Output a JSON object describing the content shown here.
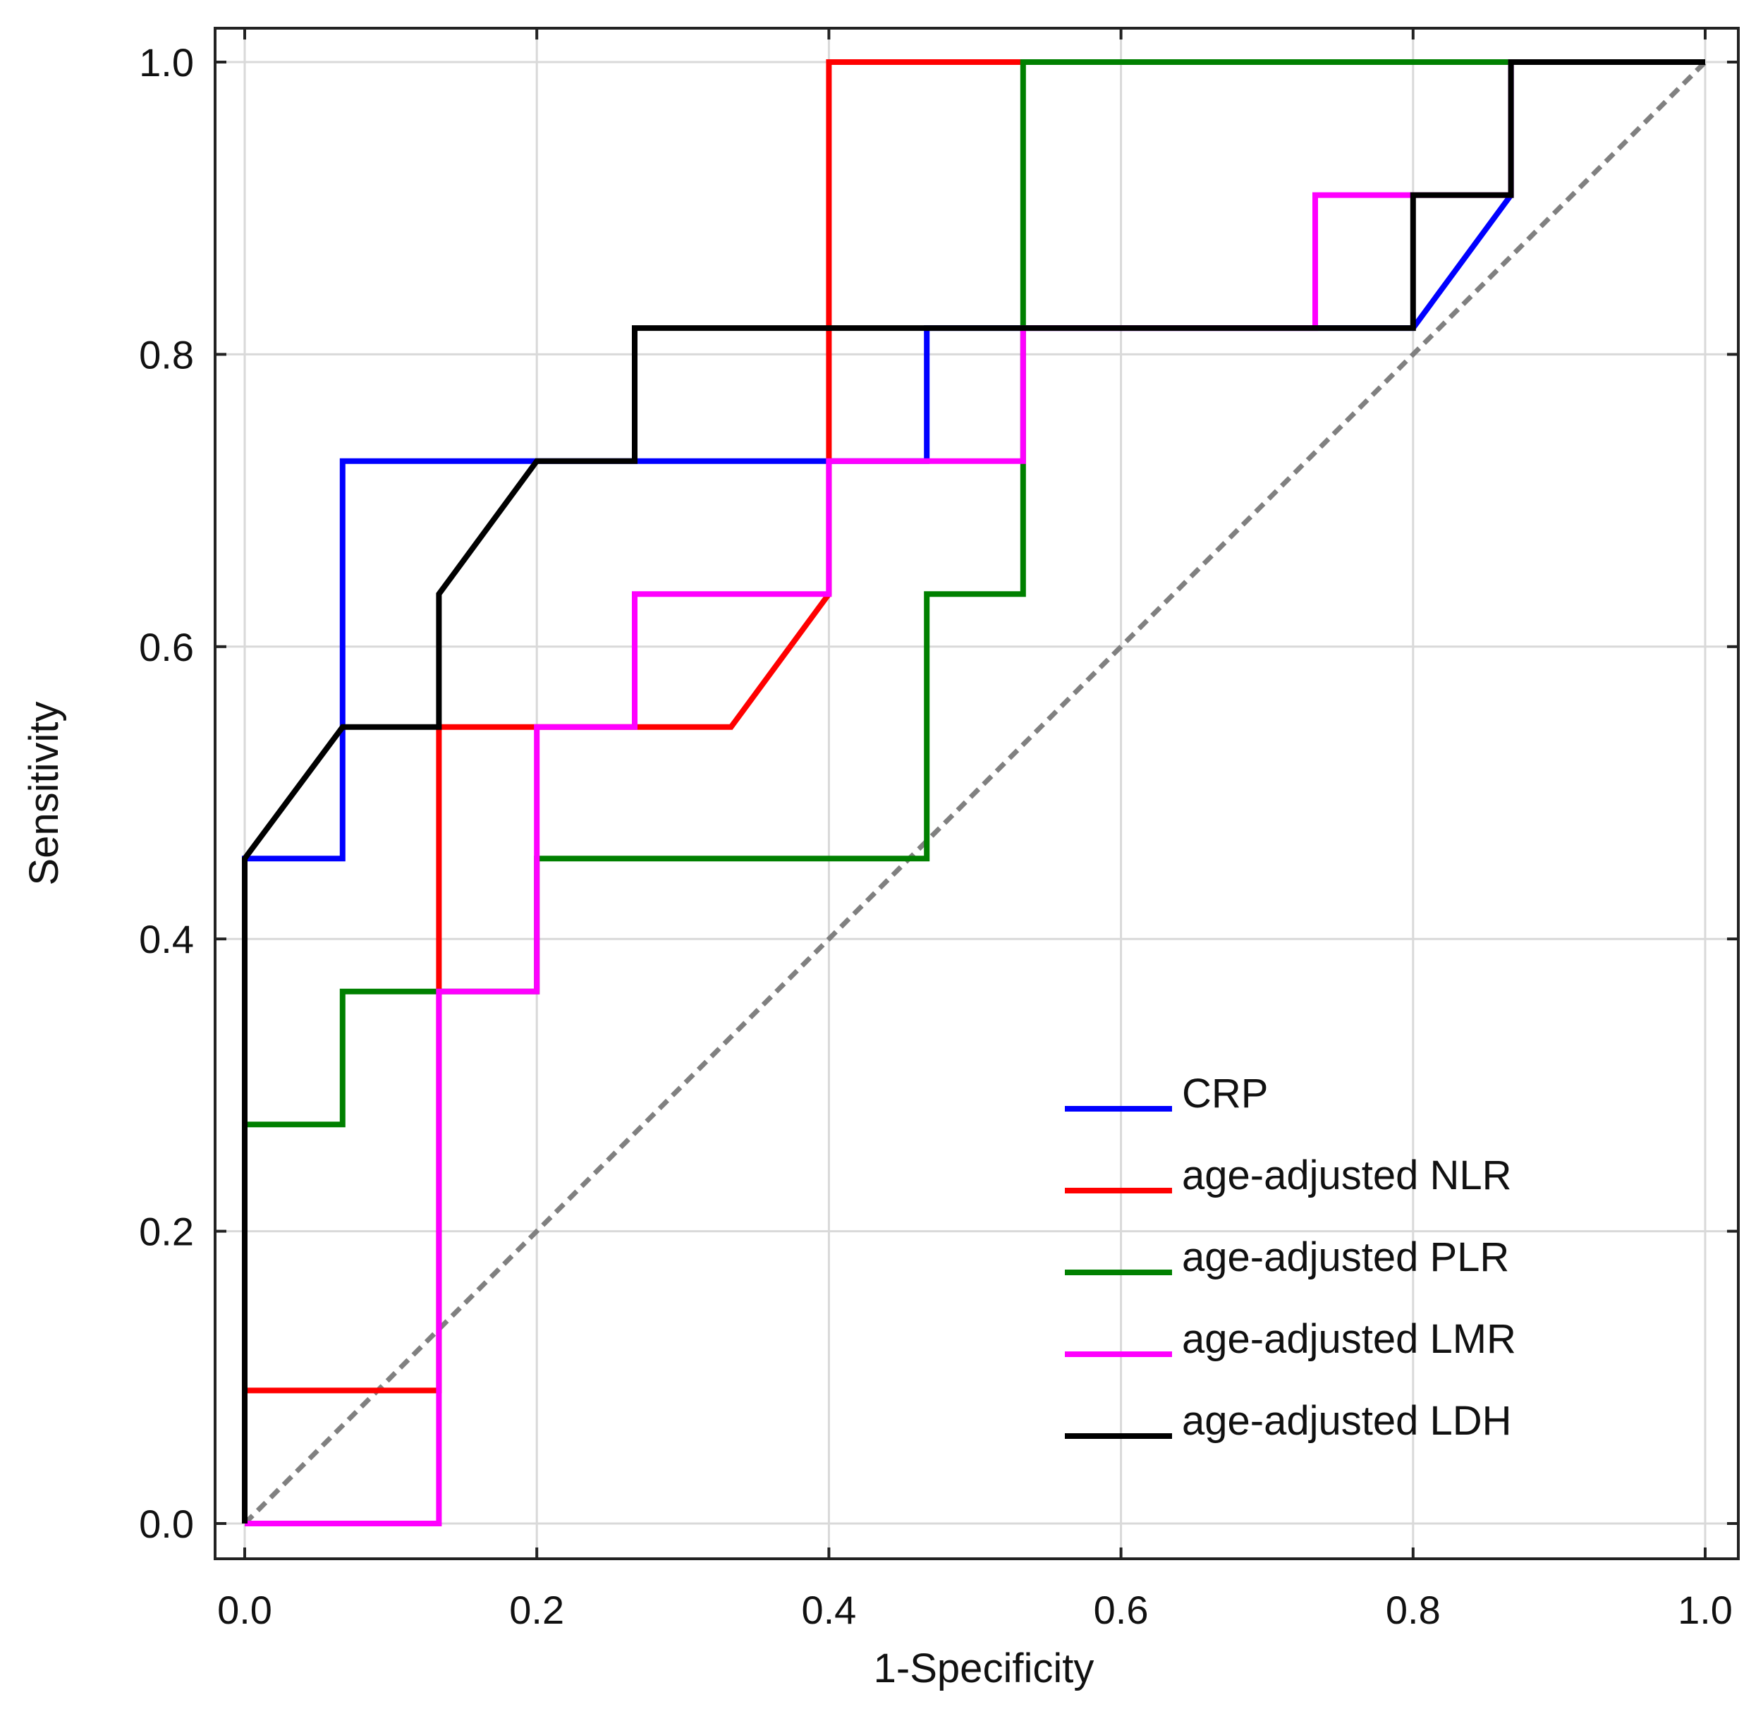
{
  "chart_data": {
    "type": "line",
    "title": "",
    "xlabel": "1-Specificity",
    "ylabel": "Sensitivity",
    "xlim": [
      0.0,
      1.0
    ],
    "ylim": [
      0.0,
      1.0
    ],
    "xticks": [
      "0.0",
      "0.2",
      "0.4",
      "0.6",
      "0.8",
      "1.0"
    ],
    "yticks": [
      "0.0",
      "0.2",
      "0.4",
      "0.6",
      "0.8",
      "1.0"
    ],
    "grid": true,
    "legend_position": "bottom-right",
    "reference_line": {
      "style": "dashed",
      "color": "#808080",
      "x": [
        0,
        1
      ],
      "y": [
        0,
        1
      ]
    },
    "series": [
      {
        "name": "CRP",
        "color": "#0000ff",
        "x": [
          0,
          0,
          0.067,
          0.067,
          0.267,
          0.467,
          0.467,
          0.8,
          0.867,
          0.867,
          1.0
        ],
        "y": [
          0,
          0.455,
          0.455,
          0.727,
          0.727,
          0.727,
          0.818,
          0.818,
          0.909,
          1.0,
          1.0
        ]
      },
      {
        "name": "age-adjusted NLR",
        "color": "#ff0000",
        "x": [
          0,
          0,
          0.133,
          0.133,
          0.2,
          0.267,
          0.333,
          0.4,
          0.4,
          0.533,
          1.0
        ],
        "y": [
          0,
          0.091,
          0.091,
          0.545,
          0.545,
          0.545,
          0.545,
          0.636,
          1.0,
          1.0,
          1.0
        ]
      },
      {
        "name": "age-adjusted PLR",
        "color": "#008000",
        "x": [
          0,
          0,
          0.067,
          0.067,
          0.133,
          0.2,
          0.2,
          0.467,
          0.467,
          0.533,
          0.533,
          1.0
        ],
        "y": [
          0,
          0.273,
          0.273,
          0.364,
          0.364,
          0.364,
          0.455,
          0.455,
          0.636,
          0.636,
          1.0,
          1.0
        ]
      },
      {
        "name": "age-adjusted LMR",
        "color": "#ff00ff",
        "x": [
          0,
          0.133,
          0.133,
          0.2,
          0.2,
          0.267,
          0.267,
          0.4,
          0.4,
          0.533,
          0.533,
          0.733,
          0.733,
          0.8,
          0.8,
          0.867,
          0.867,
          1.0
        ],
        "y": [
          0,
          0,
          0.364,
          0.364,
          0.545,
          0.545,
          0.636,
          0.636,
          0.727,
          0.727,
          0.818,
          0.818,
          0.909,
          0.909,
          0.909,
          0.909,
          1.0,
          1.0
        ]
      },
      {
        "name": "age-adjusted LDH",
        "color": "#000000",
        "x": [
          0,
          0,
          0.067,
          0.133,
          0.133,
          0.2,
          0.267,
          0.267,
          0.8,
          0.8,
          0.867,
          0.867,
          1.0
        ],
        "y": [
          0,
          0.455,
          0.545,
          0.545,
          0.636,
          0.727,
          0.727,
          0.818,
          0.818,
          0.909,
          0.909,
          1.0,
          1.0
        ]
      }
    ]
  }
}
